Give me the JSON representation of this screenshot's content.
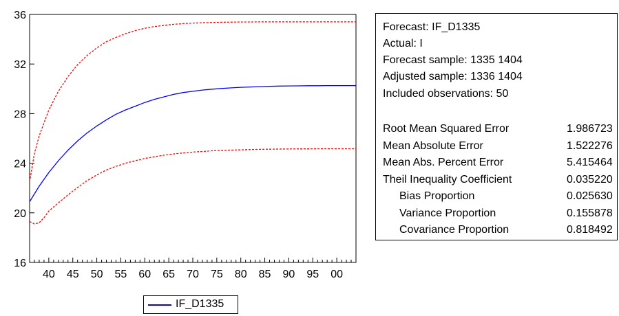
{
  "chart_data": {
    "type": "line",
    "x_tick_labels": [
      "40",
      "45",
      "50",
      "55",
      "60",
      "65",
      "70",
      "75",
      "80",
      "85",
      "90",
      "95",
      "00"
    ],
    "y_tick_labels": [
      "16",
      "20",
      "24",
      "28",
      "32",
      "36"
    ],
    "xlim": [
      1336,
      1404
    ],
    "ylim": [
      16,
      36
    ],
    "x_ticks": [
      1340,
      1345,
      1350,
      1355,
      1360,
      1365,
      1370,
      1375,
      1380,
      1385,
      1390,
      1395,
      1400
    ],
    "y_ticks": [
      16,
      20,
      24,
      28,
      32,
      36
    ],
    "grid": false,
    "legend_position": "bottom-left",
    "series": [
      {
        "name": "IF_D1335",
        "color": "#0000ff",
        "style": "solid",
        "x": [
          1336,
          1338,
          1340,
          1342,
          1344,
          1346,
          1348,
          1350,
          1352,
          1354,
          1356,
          1358,
          1360,
          1362,
          1364,
          1366,
          1368,
          1370,
          1372,
          1374,
          1376,
          1378,
          1380,
          1382,
          1384,
          1386,
          1388,
          1390,
          1392,
          1394,
          1396,
          1398,
          1400,
          1402,
          1404
        ],
        "values": [
          20.9,
          22.15,
          23.25,
          24.2,
          25.05,
          25.8,
          26.45,
          27.0,
          27.5,
          27.95,
          28.3,
          28.6,
          28.9,
          29.15,
          29.35,
          29.55,
          29.7,
          29.8,
          29.9,
          29.97,
          30.03,
          30.08,
          30.12,
          30.15,
          30.18,
          30.2,
          30.22,
          30.23,
          30.24,
          30.25,
          30.25,
          30.26,
          30.26,
          30.26,
          30.26
        ]
      },
      {
        "color": "#ff0000",
        "style": "dashed",
        "x": [
          1336,
          1337,
          1338,
          1340,
          1342,
          1344,
          1346,
          1348,
          1350,
          1352,
          1354,
          1356,
          1358,
          1360,
          1362,
          1364,
          1366,
          1368,
          1370,
          1372,
          1374,
          1376,
          1378,
          1380,
          1382,
          1384,
          1386,
          1388,
          1390,
          1392,
          1394,
          1396,
          1398,
          1400,
          1402,
          1404
        ],
        "values": [
          22.5,
          24.8,
          26.2,
          28.3,
          29.8,
          31.0,
          31.95,
          32.7,
          33.3,
          33.8,
          34.15,
          34.45,
          34.7,
          34.88,
          35.02,
          35.12,
          35.2,
          35.26,
          35.3,
          35.33,
          35.35,
          35.37,
          35.38,
          35.39,
          35.39,
          35.4,
          35.4,
          35.4,
          35.4,
          35.4,
          35.4,
          35.4,
          35.4,
          35.4,
          35.4,
          35.4
        ]
      },
      {
        "color": "#ff0000",
        "style": "dashed",
        "x": [
          1336,
          1337,
          1338,
          1339,
          1340,
          1342,
          1344,
          1346,
          1348,
          1350,
          1352,
          1354,
          1356,
          1358,
          1360,
          1362,
          1364,
          1366,
          1368,
          1370,
          1372,
          1374,
          1376,
          1378,
          1380,
          1382,
          1384,
          1386,
          1388,
          1390,
          1392,
          1394,
          1396,
          1398,
          1400,
          1402,
          1404
        ],
        "values": [
          19.3,
          19.1,
          19.2,
          19.6,
          20.15,
          20.8,
          21.45,
          22.05,
          22.6,
          23.05,
          23.45,
          23.75,
          24.0,
          24.2,
          24.38,
          24.52,
          24.65,
          24.75,
          24.83,
          24.9,
          24.95,
          25.0,
          25.03,
          25.06,
          25.08,
          25.1,
          25.12,
          25.13,
          25.14,
          25.15,
          25.16,
          25.16,
          25.17,
          25.17,
          25.17,
          25.17,
          25.17
        ]
      }
    ]
  },
  "stats_panel": {
    "header_lines": [
      "Forecast: IF_D1335",
      "Actual: I",
      "Forecast sample: 1335 1404",
      "Adjusted sample: 1336 1404",
      "Included observations: 50"
    ],
    "rows": [
      {
        "label": "Root Mean Squared Error",
        "value": "1.986723",
        "indent": false
      },
      {
        "label": "Mean Absolute Error",
        "value": "1.522276",
        "indent": false
      },
      {
        "label": "Mean Abs. Percent Error",
        "value": "5.415464",
        "indent": false
      },
      {
        "label": "Theil Inequality Coefficient",
        "value": "0.035220",
        "indent": false
      },
      {
        "label": "Bias Proportion",
        "value": "0.025630",
        "indent": true
      },
      {
        "label": "Variance Proportion",
        "value": "0.155878",
        "indent": true
      },
      {
        "label": "Covariance Proportion",
        "value": "0.818492",
        "indent": true
      }
    ]
  },
  "legend": {
    "label": "IF_D1335",
    "color": "#0000ff"
  }
}
